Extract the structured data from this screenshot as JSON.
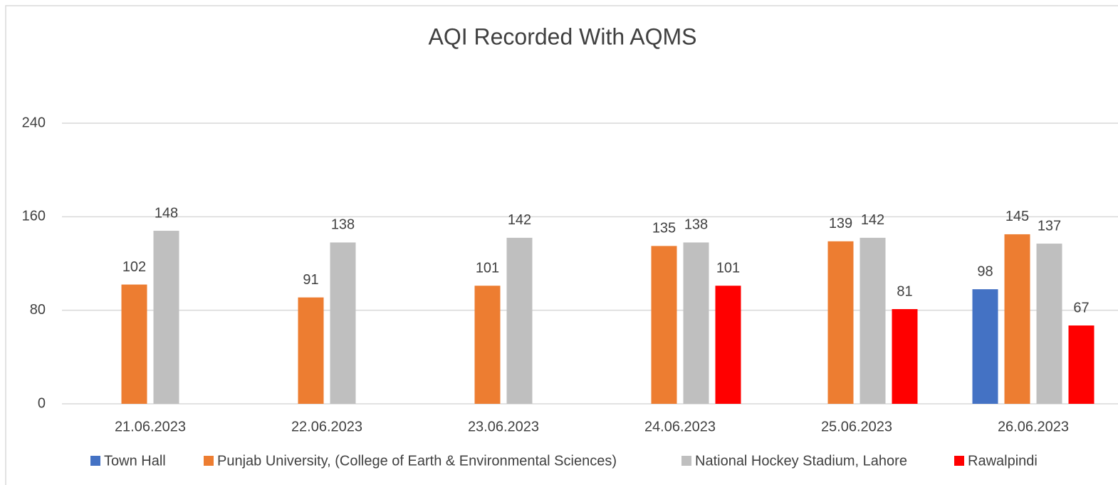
{
  "chart_data": {
    "type": "bar",
    "title": "AQI Recorded With AQMS",
    "categories": [
      "21.06.2023",
      "22.06.2023",
      "23.06.2023",
      "24.06.2023",
      "25.06.2023",
      "26.06.2023"
    ],
    "series": [
      {
        "name": "Town Hall",
        "color": "#4472c4",
        "values": [
          null,
          null,
          null,
          null,
          null,
          98
        ]
      },
      {
        "name": "Punjab University, (College of Earth & Environmental Sciences)",
        "color": "#ed7d31",
        "values": [
          102,
          91,
          101,
          135,
          139,
          145
        ]
      },
      {
        "name": "National Hockey Stadium, Lahore",
        "color": "#bfbfbf",
        "values": [
          148,
          138,
          142,
          138,
          142,
          137
        ]
      },
      {
        "name": "Rawalpindi",
        "color": "#ff0000",
        "values": [
          null,
          null,
          null,
          101,
          81,
          67
        ]
      }
    ],
    "ylim": [
      0,
      240
    ],
    "yticks": [
      0,
      80,
      160,
      240
    ],
    "grid": true,
    "legend": "bottom"
  }
}
